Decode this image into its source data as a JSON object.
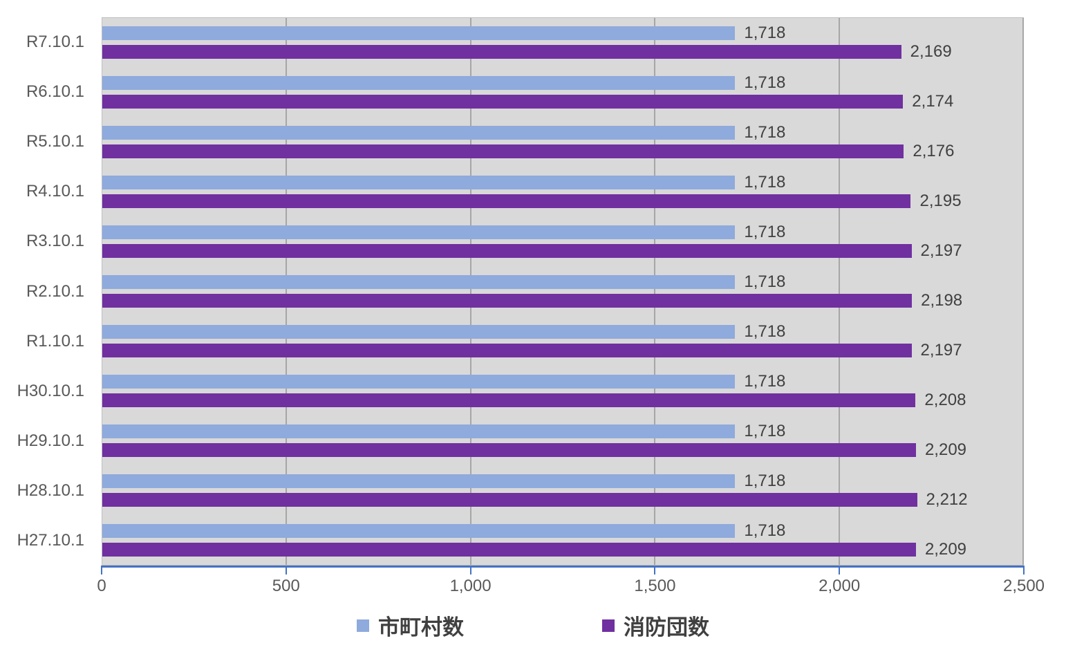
{
  "chart_data": {
    "type": "bar",
    "orientation": "horizontal",
    "title": "",
    "xlabel": "",
    "ylabel": "",
    "categories": [
      "R7.10.1",
      "R6.10.1",
      "R5.10.1",
      "R4.10.1",
      "R3.10.1",
      "R2.10.1",
      "R1.10.1",
      "H30.10.1",
      "H29.10.1",
      "H28.10.1",
      "H27.10.1"
    ],
    "series": [
      {
        "name": "市町村数",
        "color": "#8FAADC",
        "values": [
          1718,
          1718,
          1718,
          1718,
          1718,
          1718,
          1718,
          1718,
          1718,
          1718,
          1718
        ],
        "labels": [
          "1,718",
          "1,718",
          "1,718",
          "1,718",
          "1,718",
          "1,718",
          "1,718",
          "1,718",
          "1,718",
          "1,718",
          "1,718"
        ]
      },
      {
        "name": "消防団数",
        "color": "#7030A0",
        "values": [
          2169,
          2174,
          2176,
          2195,
          2197,
          2198,
          2197,
          2208,
          2209,
          2212,
          2209
        ],
        "labels": [
          "2,169",
          "2,174",
          "2,176",
          "2,195",
          "2,197",
          "2,198",
          "2,197",
          "2,208",
          "2,209",
          "2,212",
          "2,209"
        ]
      }
    ],
    "xlim": [
      0,
      2500
    ],
    "x_ticks": [
      0,
      500,
      1000,
      1500,
      2000,
      2500
    ],
    "x_tick_labels": [
      "0",
      "500",
      "1,000",
      "1,500",
      "2,000",
      "2,500"
    ],
    "grid": true,
    "legend_position": "bottom",
    "colors": {
      "plot_background": "#D9D9D9",
      "gridline": "#A6A6A6",
      "axis_line": "#4472C4",
      "data_label_text": "#404040",
      "tick_label_text": "#595959"
    }
  },
  "legend": {
    "items": [
      {
        "label": "市町村数",
        "color": "#8FAADC"
      },
      {
        "label": "消防団数",
        "color": "#7030A0"
      }
    ]
  }
}
